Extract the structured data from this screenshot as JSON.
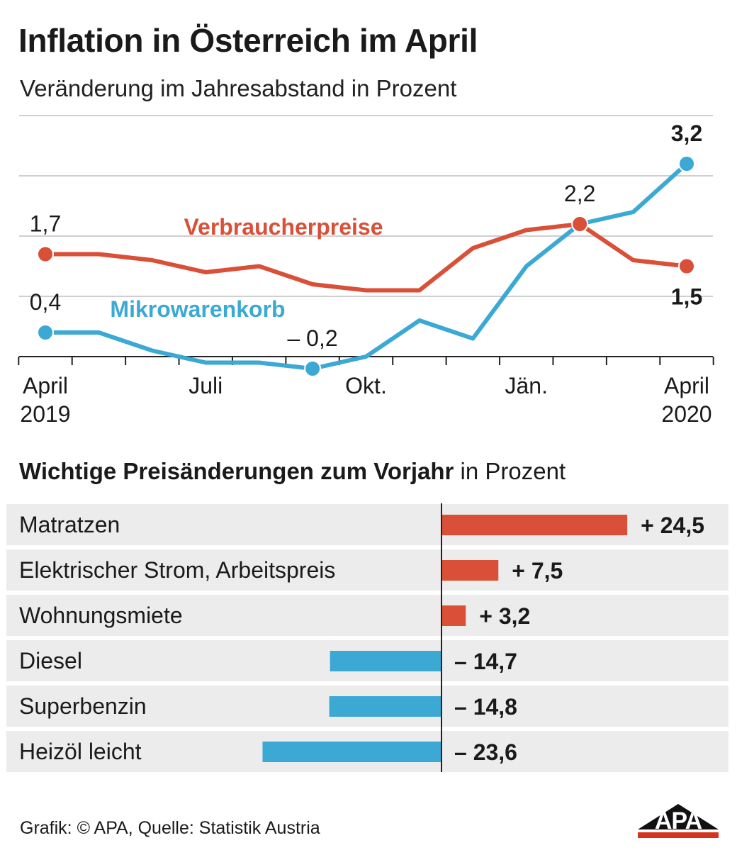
{
  "header": {
    "title": "Inflation in Österreich im April",
    "subtitle": "Veränderung im Jahresabstand in Prozent"
  },
  "colors": {
    "verbraucherpreise": "#d94f37",
    "mikrowarenkorb": "#3ba9d3",
    "row_background": "#ececec",
    "grid": "#cfcfcf"
  },
  "chart_data": [
    {
      "type": "line",
      "title": "Inflation in Österreich im April",
      "subtitle": "Veränderung im Jahresabstand in Prozent",
      "x": [
        "2019-04",
        "2019-05",
        "2019-06",
        "2019-07",
        "2019-08",
        "2019-09",
        "2019-10",
        "2019-11",
        "2019-12",
        "2020-01",
        "2020-02",
        "2020-03",
        "2020-04"
      ],
      "x_tick_labels": [
        {
          "x": "2019-04",
          "line1": "April",
          "line2": "2019"
        },
        {
          "x": "2019-07",
          "line1": "Juli",
          "line2": ""
        },
        {
          "x": "2019-10",
          "line1": "Okt.",
          "line2": ""
        },
        {
          "x": "2020-01",
          "line1": "Jän.",
          "line2": ""
        },
        {
          "x": "2020-04",
          "line1": "April",
          "line2": "2020"
        }
      ],
      "ylim": [
        -0.2,
        3.8
      ],
      "y_gridlines": [
        0,
        1,
        2,
        3,
        4
      ],
      "grid": true,
      "series": [
        {
          "name": "Verbraucherpreise",
          "color": "#d94f37",
          "values": [
            1.7,
            1.7,
            1.6,
            1.4,
            1.5,
            1.2,
            1.1,
            1.1,
            1.8,
            2.1,
            2.2,
            1.6,
            1.5
          ],
          "labels": [
            {
              "index": 0,
              "text": "1,7",
              "bold": false,
              "pos": "above"
            },
            {
              "index": 10,
              "text": "2,2",
              "bold": false,
              "pos": "above"
            },
            {
              "index": 12,
              "text": "1,5",
              "bold": true,
              "pos": "below"
            }
          ],
          "markers": [
            0,
            10,
            12
          ]
        },
        {
          "name": "Mikrowarenkorb",
          "color": "#3ba9d3",
          "values": [
            0.4,
            0.4,
            0.1,
            -0.1,
            -0.1,
            -0.2,
            0.0,
            0.6,
            0.3,
            1.5,
            2.2,
            2.4,
            3.2
          ],
          "labels": [
            {
              "index": 0,
              "text": "0,4",
              "bold": false,
              "pos": "above"
            },
            {
              "index": 5,
              "text": "– 0,2",
              "bold": false,
              "pos": "above"
            },
            {
              "index": 12,
              "text": "3,2",
              "bold": true,
              "pos": "above"
            }
          ],
          "markers": [
            0,
            5,
            12
          ]
        }
      ]
    },
    {
      "type": "bar",
      "orientation": "horizontal",
      "title": "Wichtige Preisänderungen zum Vorjahr",
      "title_suffix": "in Prozent",
      "xlim": [
        -25,
        25
      ],
      "categories": [
        "Matratzen",
        "Elektrischer Strom, Arbeitspreis",
        "Wohnungsmiete",
        "Diesel",
        "Superbenzin",
        "Heizöl leicht"
      ],
      "values": [
        24.5,
        7.5,
        3.2,
        -14.7,
        -14.8,
        -23.6
      ],
      "value_labels": [
        "+ 24,5",
        "+ 7,5",
        "+ 3,2",
        "– 14,7",
        "– 14,8",
        "– 23,6"
      ]
    }
  ],
  "footer": {
    "credit": "Grafik: © APA, Quelle: Statistik Austria",
    "logo_text": "APA"
  }
}
